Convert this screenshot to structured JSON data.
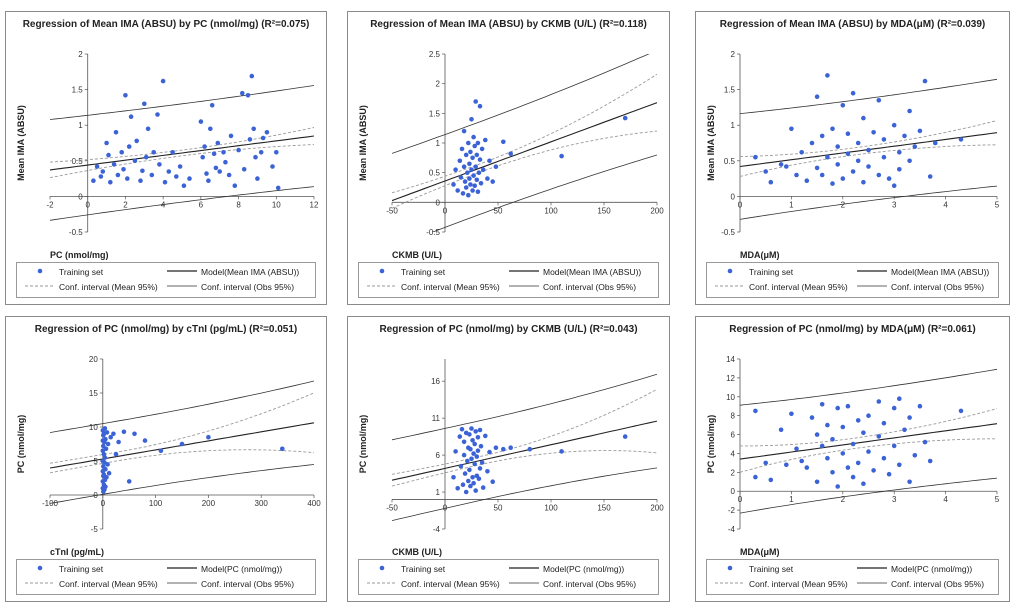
{
  "legend": {
    "training": "Training set",
    "mean_ci": "Conf. interval (Mean 95%)",
    "obs_ci": "Conf. interval (Obs 95%)"
  },
  "colors": {
    "points": "#3b63d6",
    "model": "#222222",
    "mean_ci": "#9a9a9a",
    "obs_ci": "#333333"
  },
  "chart_data": [
    {
      "type": "scatter",
      "title": "Regression of Mean IMA (ABSU) by PC (nmol/mg) (R²=0.075)",
      "xlabel": "PC (nmol/mg)",
      "ylabel": "Mean IMA (ABSU)",
      "xlim": [
        -2,
        12
      ],
      "ylim": [
        -0.5,
        2
      ],
      "xticks": [
        -2,
        0,
        2,
        4,
        6,
        8,
        10,
        12
      ],
      "yticks": [
        -0.5,
        0,
        0.5,
        1,
        1.5,
        2
      ],
      "model_label": "Model(Mean IMA (ABSU))",
      "model": [
        0.44,
        0.034
      ],
      "mean_ci_halfwidth": [
        0.11,
        0.04,
        0.12
      ],
      "obs_ci_halfwidth": 0.69,
      "points": [
        [
          0.3,
          0.22
        ],
        [
          0.5,
          0.42
        ],
        [
          0.7,
          0.28
        ],
        [
          0.8,
          0.35
        ],
        [
          1.0,
          0.75
        ],
        [
          1.1,
          0.58
        ],
        [
          1.2,
          0.2
        ],
        [
          1.4,
          0.45
        ],
        [
          1.5,
          0.9
        ],
        [
          1.6,
          0.3
        ],
        [
          1.8,
          0.62
        ],
        [
          1.9,
          0.38
        ],
        [
          2.0,
          1.42
        ],
        [
          2.1,
          0.25
        ],
        [
          2.2,
          0.7
        ],
        [
          2.3,
          1.12
        ],
        [
          2.5,
          0.5
        ],
        [
          2.6,
          0.78
        ],
        [
          2.8,
          0.22
        ],
        [
          2.9,
          0.36
        ],
        [
          3.0,
          1.3
        ],
        [
          3.1,
          0.55
        ],
        [
          3.2,
          0.95
        ],
        [
          3.4,
          0.3
        ],
        [
          3.5,
          0.62
        ],
        [
          3.7,
          1.15
        ],
        [
          3.8,
          0.45
        ],
        [
          4.0,
          1.62
        ],
        [
          4.1,
          0.2
        ],
        [
          4.3,
          0.35
        ],
        [
          4.5,
          0.62
        ],
        [
          4.7,
          0.28
        ],
        [
          4.9,
          0.42
        ],
        [
          5.1,
          0.15
        ],
        [
          5.4,
          0.25
        ],
        [
          6.0,
          1.05
        ],
        [
          6.1,
          0.55
        ],
        [
          6.2,
          0.7
        ],
        [
          6.3,
          0.32
        ],
        [
          6.4,
          0.22
        ],
        [
          6.5,
          0.95
        ],
        [
          6.6,
          1.28
        ],
        [
          6.7,
          0.6
        ],
        [
          6.8,
          0.4
        ],
        [
          6.9,
          0.75
        ],
        [
          7.0,
          0.35
        ],
        [
          7.2,
          0.62
        ],
        [
          7.3,
          0.48
        ],
        [
          7.5,
          0.3
        ],
        [
          7.6,
          0.85
        ],
        [
          7.8,
          0.15
        ],
        [
          8.0,
          0.65
        ],
        [
          8.2,
          1.45
        ],
        [
          8.3,
          0.38
        ],
        [
          8.5,
          1.42
        ],
        [
          8.6,
          0.8
        ],
        [
          8.7,
          1.69
        ],
        [
          8.8,
          0.95
        ],
        [
          8.9,
          0.55
        ],
        [
          9.0,
          0.25
        ],
        [
          9.2,
          0.62
        ],
        [
          9.3,
          0.82
        ],
        [
          9.5,
          0.9
        ],
        [
          9.8,
          0.42
        ],
        [
          10.0,
          0.62
        ],
        [
          10.1,
          0.12
        ]
      ]
    },
    {
      "type": "scatter",
      "title": "Regression of Mean IMA (ABSU) by CKMB (U/L) (R²=0.118)",
      "xlabel": "CKMB (U/L)",
      "ylabel": "Mean IMA (ABSU)",
      "xlim": [
        -50,
        200
      ],
      "ylim": [
        -0.5,
        2.5
      ],
      "xticks": [
        -50,
        0,
        50,
        100,
        150,
        200
      ],
      "yticks": [
        -0.5,
        0,
        0.5,
        1,
        1.5,
        2,
        2.5
      ],
      "model_label": "Model(Mean IMA (ABSU))",
      "model": [
        0.36,
        0.0066
      ],
      "mean_ci_halfwidth": [
        0.13,
        0.07,
        0.48
      ],
      "obs_ci_halfwidth": 0.78,
      "points": [
        [
          8,
          0.3
        ],
        [
          10,
          0.55
        ],
        [
          12,
          0.2
        ],
        [
          14,
          0.7
        ],
        [
          15,
          0.42
        ],
        [
          16,
          0.9
        ],
        [
          17,
          0.15
        ],
        [
          18,
          0.6
        ],
        [
          18,
          1.2
        ],
        [
          19,
          0.35
        ],
        [
          20,
          0.8
        ],
        [
          20,
          0.25
        ],
        [
          21,
          0.5
        ],
        [
          22,
          1.0
        ],
        [
          22,
          0.12
        ],
        [
          23,
          0.65
        ],
        [
          23,
          0.4
        ],
        [
          24,
          0.85
        ],
        [
          24,
          0.3
        ],
        [
          25,
          1.4
        ],
        [
          25,
          0.55
        ],
        [
          26,
          0.2
        ],
        [
          26,
          0.75
        ],
        [
          27,
          1.1
        ],
        [
          27,
          0.45
        ],
        [
          28,
          0.95
        ],
        [
          28,
          0.28
        ],
        [
          29,
          1.7
        ],
        [
          29,
          0.6
        ],
        [
          30,
          0.38
        ],
        [
          30,
          0.8
        ],
        [
          31,
          1.0
        ],
        [
          31,
          0.18
        ],
        [
          32,
          0.5
        ],
        [
          33,
          1.62
        ],
        [
          33,
          0.72
        ],
        [
          34,
          0.32
        ],
        [
          35,
          0.9
        ],
        [
          36,
          0.55
        ],
        [
          38,
          1.05
        ],
        [
          40,
          0.4
        ],
        [
          42,
          0.7
        ],
        [
          45,
          0.35
        ],
        [
          48,
          0.6
        ],
        [
          55,
          1.02
        ],
        [
          62,
          0.82
        ],
        [
          110,
          0.78
        ],
        [
          170,
          1.42
        ]
      ]
    },
    {
      "type": "scatter",
      "title": "Regression of Mean IMA (ABSU) by MDA(μM) (R²=0.039)",
      "xlabel": "MDA(μM)",
      "ylabel": "Mean IMA (ABSU)",
      "xlim": [
        0,
        5
      ],
      "ylim": [
        -0.5,
        2
      ],
      "xticks": [
        0,
        1,
        2,
        3,
        4,
        5
      ],
      "yticks": [
        -0.5,
        0,
        0.5,
        1,
        1.5,
        2
      ],
      "model_label": "Model(Mean IMA (ABSU))",
      "model": [
        0.42,
        0.095
      ],
      "mean_ci_halfwidth": [
        0.14,
        0.05,
        0.17
      ],
      "obs_ci_halfwidth": 0.72,
      "points": [
        [
          0.3,
          0.55
        ],
        [
          0.5,
          0.35
        ],
        [
          0.6,
          0.2
        ],
        [
          0.8,
          0.45
        ],
        [
          0.9,
          0.42
        ],
        [
          1.0,
          0.95
        ],
        [
          1.1,
          0.3
        ],
        [
          1.2,
          0.62
        ],
        [
          1.3,
          0.22
        ],
        [
          1.4,
          0.75
        ],
        [
          1.5,
          1.4
        ],
        [
          1.5,
          0.4
        ],
        [
          1.6,
          0.3
        ],
        [
          1.6,
          0.85
        ],
        [
          1.7,
          1.7
        ],
        [
          1.7,
          0.55
        ],
        [
          1.8,
          0.18
        ],
        [
          1.8,
          0.95
        ],
        [
          1.9,
          0.45
        ],
        [
          1.9,
          0.7
        ],
        [
          2.0,
          1.28
        ],
        [
          2.0,
          0.25
        ],
        [
          2.1,
          0.6
        ],
        [
          2.1,
          0.88
        ],
        [
          2.2,
          0.35
        ],
        [
          2.2,
          1.45
        ],
        [
          2.3,
          0.5
        ],
        [
          2.3,
          0.75
        ],
        [
          2.4,
          1.1
        ],
        [
          2.4,
          0.2
        ],
        [
          2.5,
          0.65
        ],
        [
          2.5,
          0.42
        ],
        [
          2.6,
          0.9
        ],
        [
          2.7,
          0.3
        ],
        [
          2.7,
          1.35
        ],
        [
          2.8,
          0.55
        ],
        [
          2.8,
          0.8
        ],
        [
          2.9,
          0.25
        ],
        [
          3.0,
          0.15
        ],
        [
          3.0,
          1.0
        ],
        [
          3.1,
          0.62
        ],
        [
          3.1,
          0.38
        ],
        [
          3.2,
          0.85
        ],
        [
          3.3,
          0.5
        ],
        [
          3.3,
          1.2
        ],
        [
          3.4,
          0.7
        ],
        [
          3.5,
          0.92
        ],
        [
          3.6,
          1.62
        ],
        [
          3.7,
          0.28
        ],
        [
          3.8,
          0.75
        ],
        [
          4.3,
          0.8
        ]
      ]
    },
    {
      "type": "scatter",
      "title": "Regression of PC (nmol/mg) by cTnI (pg/mL) (R²=0.051)",
      "xlabel": "cTnI (pg/mL)",
      "ylabel": "PC (nmol/mg)",
      "xlim": [
        -100,
        400
      ],
      "ylim": [
        -5,
        20
      ],
      "xticks": [
        -100,
        0,
        100,
        200,
        300,
        400
      ],
      "yticks": [
        -5,
        0,
        5,
        10,
        15,
        20
      ],
      "model_label": "Model(PC (nmol/mg))",
      "model": [
        5.3,
        0.0133
      ],
      "mean_ci_halfwidth": [
        0.7,
        0.65,
        4.4
      ],
      "obs_ci_halfwidth": 5.2,
      "points": [
        [
          0,
          1.0
        ],
        [
          0,
          2.0
        ],
        [
          0,
          3.5
        ],
        [
          0,
          5.0
        ],
        [
          0,
          6.5
        ],
        [
          0,
          8.0
        ],
        [
          0,
          9.5
        ],
        [
          1,
          0.5
        ],
        [
          1,
          2.8
        ],
        [
          1,
          4.2
        ],
        [
          1,
          7.2
        ],
        [
          1,
          8.8
        ],
        [
          2,
          1.5
        ],
        [
          2,
          3.0
        ],
        [
          2,
          6.0
        ],
        [
          2,
          9.0
        ],
        [
          3,
          0.8
        ],
        [
          3,
          4.8
        ],
        [
          3,
          7.8
        ],
        [
          4,
          2.2
        ],
        [
          4,
          5.5
        ],
        [
          4,
          9.8
        ],
        [
          5,
          1.2
        ],
        [
          5,
          3.8
        ],
        [
          5,
          8.2
        ],
        [
          6,
          6.8
        ],
        [
          7,
          2.6
        ],
        [
          8,
          9.2
        ],
        [
          9,
          4.5
        ],
        [
          10,
          7.5
        ],
        [
          12,
          3.2
        ],
        [
          15,
          8.5
        ],
        [
          20,
          9.0
        ],
        [
          25,
          6.0
        ],
        [
          30,
          7.8
        ],
        [
          40,
          9.3
        ],
        [
          50,
          2.0
        ],
        [
          60,
          9.0
        ],
        [
          80,
          8.0
        ],
        [
          110,
          6.5
        ],
        [
          150,
          7.5
        ],
        [
          200,
          8.5
        ],
        [
          340,
          6.8
        ]
      ]
    },
    {
      "type": "scatter",
      "title": "Regression of PC (nmol/mg) by CKMB (U/L) (R²=0.043)",
      "xlabel": "CKMB (U/L)",
      "ylabel": "PC (nmol/mg)",
      "xlim": [
        -50,
        200
      ],
      "ylim": [
        -4,
        19
      ],
      "xticks": [
        -50,
        0,
        50,
        100,
        150,
        200
      ],
      "yticks": [
        -4,
        1,
        6,
        11,
        16
      ],
      "model_label": "Model(PC (nmol/mg))",
      "model": [
        4.2,
        0.032
      ],
      "mean_ci_halfwidth": [
        0.8,
        0.55,
        4.3
      ],
      "obs_ci_halfwidth": 5.4,
      "points": [
        [
          8,
          3.0
        ],
        [
          10,
          6.5
        ],
        [
          12,
          1.5
        ],
        [
          14,
          8.5
        ],
        [
          15,
          4.5
        ],
        [
          16,
          9.5
        ],
        [
          17,
          2.0
        ],
        [
          18,
          6.0
        ],
        [
          18,
          7.8
        ],
        [
          19,
          3.5
        ],
        [
          20,
          9.0
        ],
        [
          20,
          1.0
        ],
        [
          21,
          5.2
        ],
        [
          22,
          7.0
        ],
        [
          22,
          2.5
        ],
        [
          23,
          8.8
        ],
        [
          23,
          4.0
        ],
        [
          24,
          6.8
        ],
        [
          24,
          1.8
        ],
        [
          25,
          9.6
        ],
        [
          25,
          5.5
        ],
        [
          26,
          3.0
        ],
        [
          26,
          8.0
        ],
        [
          27,
          6.2
        ],
        [
          27,
          2.2
        ],
        [
          28,
          7.5
        ],
        [
          28,
          4.8
        ],
        [
          29,
          9.2
        ],
        [
          29,
          1.2
        ],
        [
          30,
          5.8
        ],
        [
          30,
          3.2
        ],
        [
          31,
          8.4
        ],
        [
          31,
          6.6
        ],
        [
          32,
          2.8
        ],
        [
          33,
          9.4
        ],
        [
          33,
          4.2
        ],
        [
          34,
          7.2
        ],
        [
          35,
          5.0
        ],
        [
          36,
          1.6
        ],
        [
          38,
          8.6
        ],
        [
          40,
          3.8
        ],
        [
          42,
          6.4
        ],
        [
          45,
          2.4
        ],
        [
          48,
          7.0
        ],
        [
          55,
          6.8
        ],
        [
          62,
          7.0
        ],
        [
          80,
          6.8
        ],
        [
          110,
          6.5
        ],
        [
          170,
          8.5
        ]
      ]
    },
    {
      "type": "scatter",
      "title": "Regression of PC (nmol/mg) by MDA(μM) (R²=0.061)",
      "xlabel": "MDA(μM)",
      "ylabel": "PC (nmol/mg)",
      "xlim": [
        0,
        5
      ],
      "ylim": [
        -4,
        14
      ],
      "xticks": [
        0,
        1,
        2,
        3,
        4,
        5
      ],
      "yticks": [
        -4,
        -2,
        0,
        2,
        4,
        6,
        8,
        10,
        12,
        14
      ],
      "model_label": "Model(PC (nmol/mg))",
      "model": [
        3.4,
        0.75
      ],
      "mean_ci_halfwidth": [
        1.4,
        0.55,
        1.6
      ],
      "obs_ci_halfwidth": 5.5,
      "points": [
        [
          0.3,
          1.5
        ],
        [
          0.3,
          8.5
        ],
        [
          0.5,
          3.0
        ],
        [
          0.6,
          1.2
        ],
        [
          0.8,
          6.5
        ],
        [
          0.9,
          2.8
        ],
        [
          1.0,
          8.2
        ],
        [
          1.1,
          4.5
        ],
        [
          1.2,
          3.2
        ],
        [
          1.3,
          2.5
        ],
        [
          1.4,
          7.8
        ],
        [
          1.5,
          6.0
        ],
        [
          1.5,
          1.0
        ],
        [
          1.6,
          4.8
        ],
        [
          1.6,
          9.2
        ],
        [
          1.7,
          3.5
        ],
        [
          1.7,
          7.0
        ],
        [
          1.8,
          2.0
        ],
        [
          1.8,
          5.5
        ],
        [
          1.9,
          8.8
        ],
        [
          1.9,
          0.5
        ],
        [
          2.0,
          4.0
        ],
        [
          2.0,
          6.8
        ],
        [
          2.1,
          2.5
        ],
        [
          2.1,
          9.0
        ],
        [
          2.2,
          5.0
        ],
        [
          2.2,
          1.5
        ],
        [
          2.3,
          7.5
        ],
        [
          2.3,
          3.0
        ],
        [
          2.4,
          6.2
        ],
        [
          2.4,
          0.8
        ],
        [
          2.5,
          8.0
        ],
        [
          2.5,
          4.2
        ],
        [
          2.6,
          2.2
        ],
        [
          2.7,
          9.5
        ],
        [
          2.7,
          5.8
        ],
        [
          2.8,
          3.5
        ],
        [
          2.8,
          7.2
        ],
        [
          2.9,
          1.8
        ],
        [
          3.0,
          8.8
        ],
        [
          3.0,
          4.8
        ],
        [
          3.1,
          2.8
        ],
        [
          3.1,
          9.8
        ],
        [
          3.2,
          6.5
        ],
        [
          3.3,
          1.0
        ],
        [
          3.3,
          7.8
        ],
        [
          3.4,
          3.8
        ],
        [
          3.5,
          9.0
        ],
        [
          3.6,
          5.2
        ],
        [
          3.7,
          3.2
        ],
        [
          4.3,
          8.5
        ]
      ]
    }
  ]
}
